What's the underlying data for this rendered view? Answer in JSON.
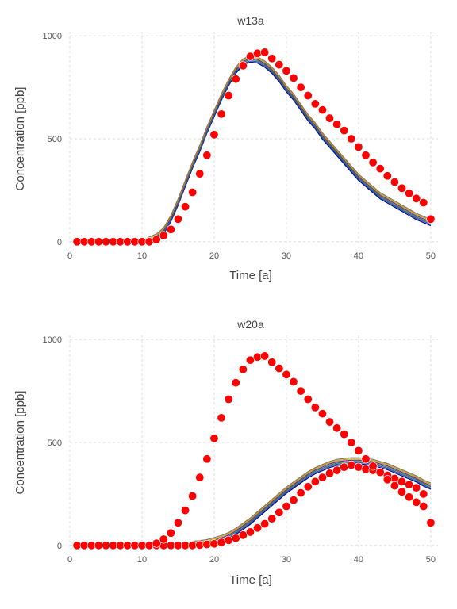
{
  "chart_data": [
    {
      "type": "scatter",
      "title": "w13a",
      "xlabel": "Time [a]",
      "ylabel": "Concentration [ppb]",
      "xlim": [
        0,
        51
      ],
      "ylim": [
        -20,
        1020
      ],
      "xticks": [
        0,
        10,
        20,
        30,
        40,
        50
      ],
      "yticks": [
        0,
        500,
        1000
      ],
      "grid": true,
      "line_colors": [
        "#00008b",
        "#1f4fbf",
        "#2e7d32",
        "#7b1fa2",
        "#b0b000",
        "#8d6e63"
      ],
      "series": [
        {
          "kind": "lines",
          "x": [
            1,
            2,
            3,
            4,
            5,
            6,
            7,
            8,
            9,
            10,
            11,
            12,
            13,
            14,
            15,
            16,
            17,
            18,
            19,
            20,
            21,
            22,
            23,
            24,
            25,
            26,
            27,
            28,
            29,
            30,
            31,
            32,
            33,
            34,
            35,
            36,
            37,
            38,
            39,
            40,
            41,
            42,
            43,
            44,
            45,
            46,
            47,
            48,
            49,
            50
          ],
          "values": [
            0,
            0,
            0,
            0,
            0,
            0,
            0,
            0,
            0,
            0,
            5,
            20,
            50,
            110,
            190,
            280,
            370,
            450,
            540,
            620,
            700,
            770,
            830,
            870,
            885,
            880,
            860,
            830,
            790,
            740,
            700,
            650,
            600,
            560,
            510,
            470,
            430,
            390,
            350,
            310,
            280,
            250,
            220,
            200,
            180,
            160,
            140,
            120,
            105,
            90
          ]
        },
        {
          "kind": "points",
          "x": [
            1,
            2,
            3,
            4,
            5,
            6,
            7,
            8,
            9,
            10,
            11,
            12,
            13,
            14,
            15,
            16,
            17,
            18,
            19,
            20,
            21,
            22,
            23,
            24,
            25,
            26,
            27,
            28,
            29,
            30,
            31,
            32,
            33,
            34,
            35,
            36,
            37,
            38,
            39,
            40,
            41,
            42,
            43,
            44,
            45,
            46,
            47,
            48,
            49,
            50
          ],
          "values": [
            0,
            0,
            0,
            0,
            0,
            0,
            0,
            0,
            0,
            0,
            0,
            10,
            30,
            60,
            110,
            170,
            240,
            330,
            420,
            520,
            620,
            710,
            790,
            855,
            900,
            915,
            920,
            890,
            860,
            830,
            795,
            750,
            710,
            670,
            640,
            600,
            570,
            540,
            500,
            460,
            420,
            385,
            355,
            320,
            290,
            260,
            235,
            210,
            190,
            110
          ]
        }
      ]
    },
    {
      "type": "scatter",
      "title": "w20a",
      "xlabel": "Time [a]",
      "ylabel": "Concentration [ppb]",
      "xlim": [
        0,
        51
      ],
      "ylim": [
        -20,
        1020
      ],
      "xticks": [
        0,
        10,
        20,
        30,
        40,
        50
      ],
      "yticks": [
        0,
        500,
        1000
      ],
      "grid": true,
      "line_colors": [
        "#00008b",
        "#1f4fbf",
        "#2e7d32",
        "#7b1fa2",
        "#b0b000",
        "#8d6e63"
      ],
      "series": [
        {
          "kind": "lines",
          "x": [
            1,
            2,
            3,
            4,
            5,
            6,
            7,
            8,
            9,
            10,
            11,
            12,
            13,
            14,
            15,
            16,
            17,
            18,
            19,
            20,
            21,
            22,
            23,
            24,
            25,
            26,
            27,
            28,
            29,
            30,
            31,
            32,
            33,
            34,
            35,
            36,
            37,
            38,
            39,
            40,
            41,
            42,
            43,
            44,
            45,
            46,
            47,
            48,
            49,
            50
          ],
          "values": [
            0,
            0,
            0,
            0,
            0,
            0,
            0,
            0,
            0,
            0,
            0,
            0,
            0,
            0,
            0,
            0,
            2,
            5,
            10,
            20,
            30,
            45,
            65,
            90,
            115,
            145,
            175,
            205,
            235,
            265,
            290,
            315,
            340,
            360,
            375,
            390,
            400,
            405,
            408,
            408,
            405,
            400,
            390,
            380,
            365,
            350,
            335,
            320,
            300,
            285
          ]
        },
        {
          "kind": "points",
          "x": [
            1,
            2,
            3,
            4,
            5,
            6,
            7,
            8,
            9,
            10,
            11,
            12,
            13,
            14,
            15,
            16,
            17,
            18,
            19,
            20,
            21,
            22,
            23,
            24,
            25,
            26,
            27,
            28,
            29,
            30,
            31,
            32,
            33,
            34,
            35,
            36,
            37,
            38,
            39,
            40,
            41,
            42,
            43,
            44,
            45,
            46,
            47,
            48,
            49,
            50
          ],
          "values": [
            0,
            0,
            0,
            0,
            0,
            0,
            0,
            0,
            0,
            0,
            0,
            0,
            0,
            0,
            0,
            0,
            0,
            2,
            5,
            8,
            15,
            25,
            35,
            50,
            65,
            85,
            105,
            130,
            160,
            190,
            220,
            255,
            285,
            310,
            330,
            350,
            365,
            380,
            390,
            380,
            370,
            365,
            355,
            340,
            325,
            310,
            295,
            280,
            250,
            110
          ]
        },
        {
          "kind": "points",
          "x": [
            1,
            2,
            3,
            4,
            5,
            6,
            7,
            8,
            9,
            10,
            11,
            12,
            13,
            14,
            15,
            16,
            17,
            18,
            19,
            20,
            21,
            22,
            23,
            24,
            25,
            26,
            27,
            28,
            29,
            30,
            31,
            32,
            33,
            34,
            35,
            36,
            37,
            38,
            39,
            40,
            41,
            42,
            43,
            44,
            45,
            46,
            47,
            48,
            49,
            50
          ],
          "values": [
            0,
            0,
            0,
            0,
            0,
            0,
            0,
            0,
            0,
            0,
            0,
            10,
            30,
            60,
            110,
            170,
            240,
            330,
            420,
            520,
            620,
            710,
            790,
            855,
            900,
            915,
            920,
            890,
            860,
            830,
            795,
            750,
            710,
            670,
            640,
            600,
            570,
            540,
            500,
            460,
            420,
            385,
            355,
            320,
            290,
            260,
            235,
            210,
            190,
            110
          ]
        }
      ]
    }
  ]
}
